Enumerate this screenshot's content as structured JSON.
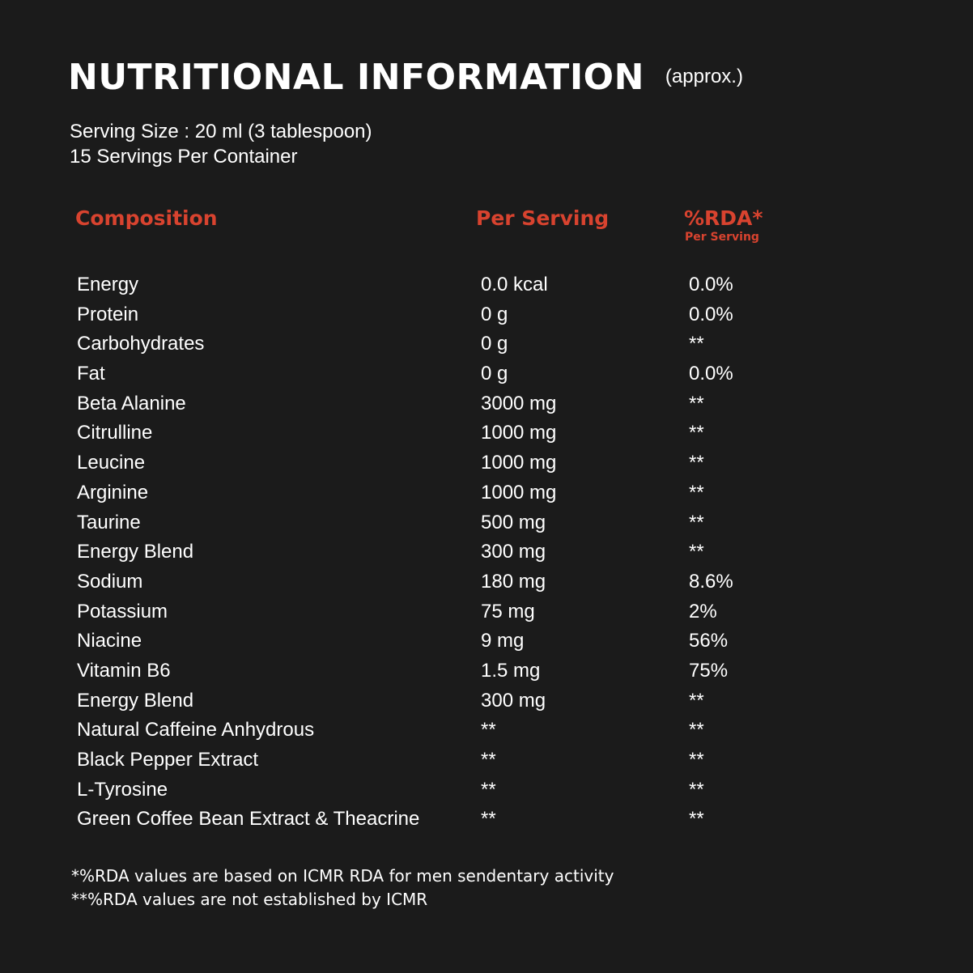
{
  "header": {
    "title": "NUTRITIONAL INFORMATION",
    "approx": "(approx.)",
    "serving_size": "Serving Size : 20 ml (3 tablespoon)",
    "servings_per_container": "15 Servings Per Container"
  },
  "table": {
    "columns": {
      "composition": "Composition",
      "per_serving": "Per Serving",
      "rda": "%RDA*",
      "rda_sub": "Per Serving"
    },
    "rows": [
      {
        "name": "Energy",
        "per": "0.0 kcal",
        "rda": "0.0%"
      },
      {
        "name": "Protein",
        "per": "0 g",
        "rda": "0.0%"
      },
      {
        "name": "Carbohydrates",
        "per": "0 g",
        "rda": "**"
      },
      {
        "name": "Fat",
        "per": "0 g",
        "rda": "0.0%"
      },
      {
        "name": "Beta Alanine",
        "per": "3000 mg",
        "rda": "**"
      },
      {
        "name": "Citrulline",
        "per": "1000 mg",
        "rda": "**"
      },
      {
        "name": "Leucine",
        "per": "1000 mg",
        "rda": "**"
      },
      {
        "name": "Arginine",
        "per": "1000 mg",
        "rda": "**"
      },
      {
        "name": "Taurine",
        "per": "500 mg",
        "rda": "**"
      },
      {
        "name": "Energy Blend",
        "per": "300 mg",
        "rda": "**"
      },
      {
        "name": "Sodium",
        "per": "180 mg",
        "rda": "8.6%"
      },
      {
        "name": "Potassium",
        "per": "75 mg",
        "rda": "2%"
      },
      {
        "name": "Niacine",
        "per": "9 mg",
        "rda": "56%"
      },
      {
        "name": "Vitamin B6",
        "per": "1.5 mg",
        "rda": "75%"
      },
      {
        "name": "Energy Blend",
        "per": "300 mg",
        "rda": "**"
      },
      {
        "name": "Natural Caffeine Anhydrous",
        "per": "**",
        "rda": "**"
      },
      {
        "name": "Black Pepper Extract",
        "per": "**",
        "rda": "**"
      },
      {
        "name": "L-Tyrosine",
        "per": "**",
        "rda": "**"
      },
      {
        "name": "Green Coffee Bean Extract & Theacrine",
        "per": "**",
        "rda": "**"
      }
    ]
  },
  "footnotes": {
    "note1": "*%RDA values are based on ICMR RDA for men sendentary activity",
    "note2": "**%RDA values are not established by ICMR"
  }
}
